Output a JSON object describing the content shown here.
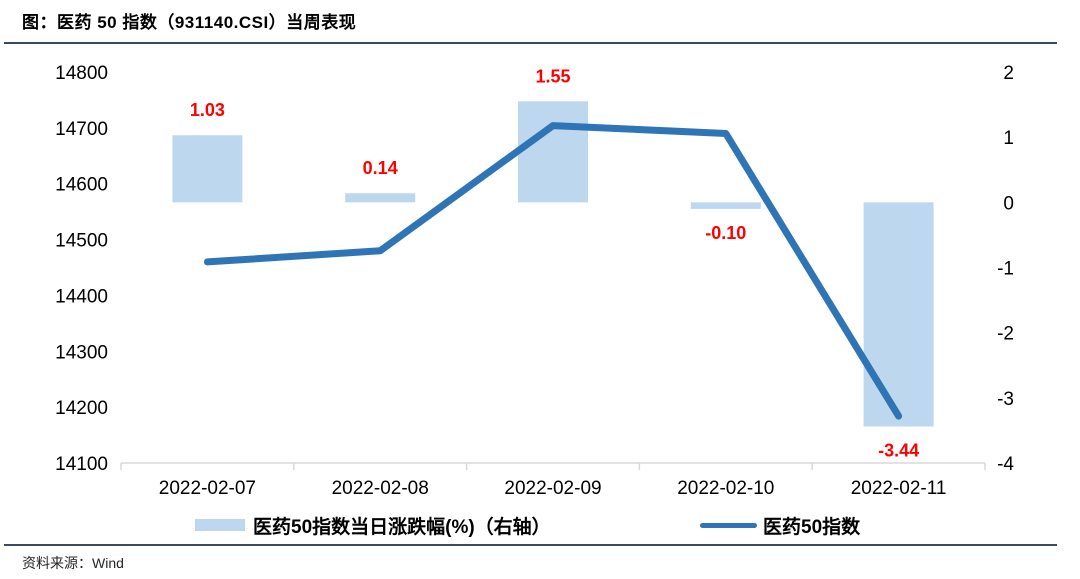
{
  "figure": {
    "title": "图：医药 50 指数（931140.CSI）当周表现",
    "source": "资料来源：Wind"
  },
  "legend": {
    "items": [
      {
        "label": "医药50指数当日涨跌幅(%)（右轴）",
        "swatch": "bar"
      },
      {
        "label": "医药50指数",
        "swatch": "line"
      }
    ]
  },
  "colors": {
    "bar_fill": "#BDD7EE",
    "line_stroke": "#2F75B5",
    "value_label": "#FF0000",
    "axis_line": "#D9D9D9",
    "axis_text": "#000000",
    "rule": "#3B4963"
  },
  "chart_data": {
    "type": "bar+line combo",
    "title": "图：医药 50 指数（931140.CSI）当周表现",
    "categories": [
      "2022-02-07",
      "2022-02-08",
      "2022-02-09",
      "2022-02-10",
      "2022-02-11"
    ],
    "series": [
      {
        "name": "医药50指数当日涨跌幅(%)（右轴）",
        "type": "bar",
        "axis": "right",
        "values": [
          1.03,
          0.14,
          1.55,
          -0.1,
          -3.44
        ],
        "value_labels": [
          "1.03",
          "0.14",
          "1.55",
          "-0.10",
          "-3.44"
        ]
      },
      {
        "name": "医药50指数",
        "type": "line",
        "axis": "left",
        "values": [
          14460,
          14480,
          14704,
          14690,
          14184
        ]
      }
    ],
    "left_axis": {
      "min": 14100,
      "max": 14800,
      "step": 100,
      "ticks": [
        14800,
        14700,
        14600,
        14500,
        14400,
        14300,
        14200,
        14100
      ]
    },
    "right_axis": {
      "min": -4,
      "max": 2,
      "step": 1,
      "ticks": [
        2,
        1,
        0,
        -1,
        -2,
        -3,
        -4
      ]
    },
    "grid": false,
    "legend_position": "bottom"
  }
}
